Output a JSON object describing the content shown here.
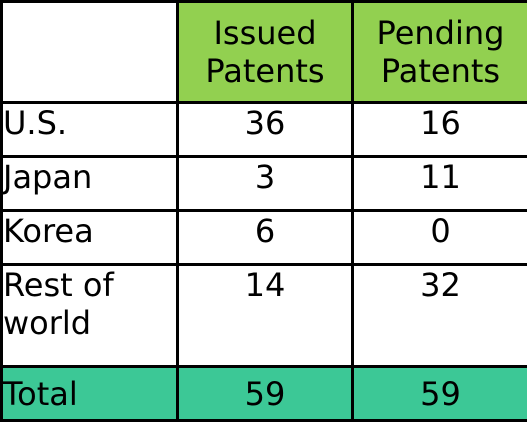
{
  "chart_data": {
    "type": "table",
    "columns": [
      {
        "lines": [
          "Issued",
          "Patents"
        ]
      },
      {
        "lines": [
          "Pending",
          "Patents"
        ]
      }
    ],
    "rows": [
      {
        "lines": [
          "U.S."
        ],
        "values": [
          36,
          16
        ]
      },
      {
        "lines": [
          "Japan"
        ],
        "values": [
          3,
          11
        ]
      },
      {
        "lines": [
          "Korea"
        ],
        "values": [
          6,
          0
        ]
      },
      {
        "lines": [
          "Rest of",
          "world"
        ],
        "values": [
          14,
          32
        ]
      }
    ],
    "total": {
      "label": "Total",
      "values": [
        59,
        59
      ]
    }
  },
  "colors": {
    "header_background": "#92D050",
    "total_background": "#3CC896",
    "grid": "#000000",
    "text": "#000000"
  }
}
